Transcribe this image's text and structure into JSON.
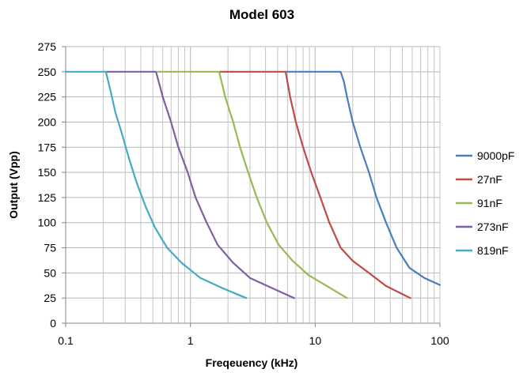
{
  "chart_data": {
    "type": "line",
    "title": "Model 603",
    "xlabel": "Freqeuency (kHz)",
    "ylabel": "Output (Vpp)",
    "x_scale": "log",
    "xlim": [
      0.1,
      100
    ],
    "ylim": [
      0,
      275
    ],
    "x_ticks": [
      0.1,
      1,
      10,
      100
    ],
    "x_tick_labels": [
      "0.1",
      "1",
      "10",
      "100"
    ],
    "y_ticks": [
      0,
      25,
      50,
      75,
      100,
      125,
      150,
      175,
      200,
      225,
      250,
      275
    ],
    "grid": true,
    "legend_position": "right",
    "series": [
      {
        "name": "9000pF",
        "color": "#4a7ebb",
        "points": [
          [
            5.8,
            250
          ],
          [
            16,
            250
          ],
          [
            17,
            240
          ],
          [
            18,
            225
          ],
          [
            20,
            200
          ],
          [
            23,
            175
          ],
          [
            27,
            150
          ],
          [
            31,
            125
          ],
          [
            37,
            100
          ],
          [
            45,
            75
          ],
          [
            57,
            55
          ],
          [
            75,
            45
          ],
          [
            100,
            38
          ]
        ]
      },
      {
        "name": "27nF",
        "color": "#be4b48",
        "points": [
          [
            1.7,
            250
          ],
          [
            5.8,
            250
          ],
          [
            6.3,
            225
          ],
          [
            7.0,
            200
          ],
          [
            8.0,
            175
          ],
          [
            9.3,
            150
          ],
          [
            11,
            125
          ],
          [
            13,
            100
          ],
          [
            16,
            75
          ],
          [
            20,
            62
          ],
          [
            27,
            50
          ],
          [
            37,
            37
          ],
          [
            58,
            25
          ]
        ]
      },
      {
        "name": "91nF",
        "color": "#98b954",
        "points": [
          [
            0.55,
            250
          ],
          [
            1.7,
            250
          ],
          [
            1.9,
            225
          ],
          [
            2.2,
            200
          ],
          [
            2.5,
            175
          ],
          [
            2.9,
            150
          ],
          [
            3.4,
            125
          ],
          [
            4.1,
            100
          ],
          [
            5.1,
            78
          ],
          [
            6.6,
            62
          ],
          [
            8.8,
            48
          ],
          [
            12,
            38
          ],
          [
            18,
            25
          ]
        ]
      },
      {
        "name": "273nF",
        "color": "#7d60a0",
        "points": [
          [
            0.21,
            250
          ],
          [
            0.53,
            250
          ],
          [
            0.6,
            225
          ],
          [
            0.7,
            200
          ],
          [
            0.8,
            175
          ],
          [
            0.95,
            150
          ],
          [
            1.1,
            125
          ],
          [
            1.35,
            100
          ],
          [
            1.65,
            78
          ],
          [
            2.2,
            60
          ],
          [
            3.0,
            45
          ],
          [
            4.5,
            35
          ],
          [
            6.8,
            25
          ]
        ]
      },
      {
        "name": "819nF",
        "color": "#46aac5",
        "points": [
          [
            0.1,
            250
          ],
          [
            0.21,
            250
          ],
          [
            0.23,
            230
          ],
          [
            0.25,
            210
          ],
          [
            0.28,
            190
          ],
          [
            0.32,
            165
          ],
          [
            0.37,
            140
          ],
          [
            0.44,
            115
          ],
          [
            0.52,
            95
          ],
          [
            0.65,
            75
          ],
          [
            0.85,
            60
          ],
          [
            1.2,
            45
          ],
          [
            1.8,
            35
          ],
          [
            2.8,
            25
          ]
        ]
      }
    ]
  }
}
